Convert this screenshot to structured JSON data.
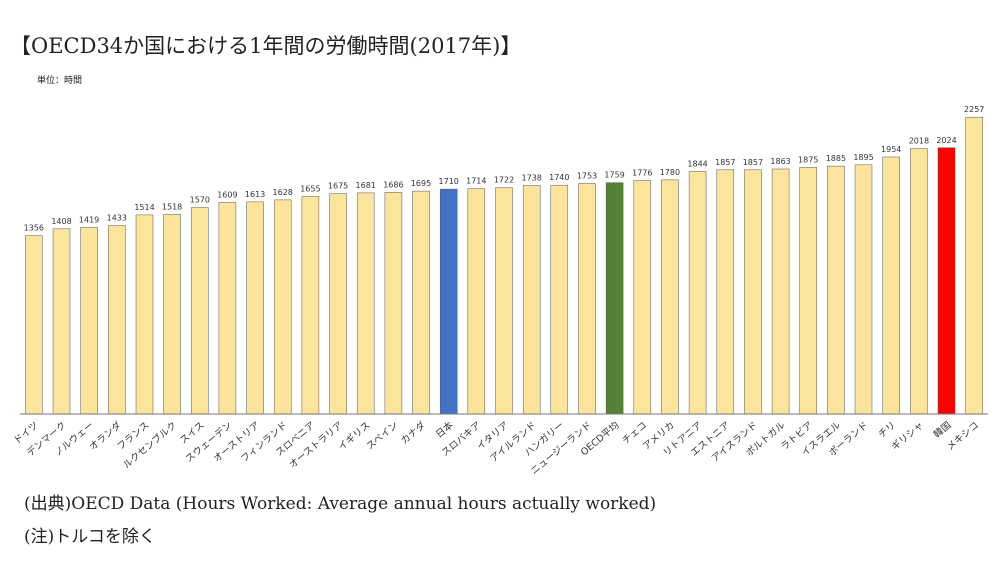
{
  "header": {
    "title": "【OECD34か国における1年間の労働時間(2017年)】",
    "unit": "単位：時間"
  },
  "footer": {
    "source": "(出典)OECD Data (Hours Worked: Average annual hours actually worked)",
    "note": "(注)トルコを除く"
  },
  "colors": {
    "default_bar": "#fde49c",
    "japan": "#4472c4",
    "oecd_average": "#548235",
    "korea": "#ff0000",
    "bar_stroke": "#555555",
    "axis": "#777777"
  },
  "chart_data": {
    "type": "bar",
    "title": "【OECD34か国における1年間の労働時間(2017年)】",
    "xlabel": "",
    "ylabel": "",
    "ylim": [
      0,
      2300
    ],
    "grid": false,
    "legend": "none",
    "categories": [
      "ドイツ",
      "デンマーク",
      "ノルウェー",
      "オランダ",
      "フランス",
      "ルクセンブルク",
      "スイス",
      "スウェーデン",
      "オーストリア",
      "フィンランド",
      "スロベニア",
      "オーストラリア",
      "イギリス",
      "スペイン",
      "カナダ",
      "日本",
      "スロバキア",
      "イタリア",
      "アイルランド",
      "ハンガリー",
      "ニュージーランド",
      "OECD平均",
      "チェコ",
      "アメリカ",
      "リトアニア",
      "エストニア",
      "アイスランド",
      "ポルトガル",
      "ラトビア",
      "イスラエル",
      "ポーランド",
      "チリ",
      "ギリシャ",
      "韓国",
      "メキシコ"
    ],
    "values": [
      1356,
      1408,
      1419,
      1433,
      1514,
      1518,
      1570,
      1609,
      1613,
      1628,
      1655,
      1675,
      1681,
      1686,
      1695,
      1710,
      1714,
      1722,
      1738,
      1740,
      1753,
      1759,
      1776,
      1780,
      1844,
      1857,
      1857,
      1863,
      1875,
      1885,
      1895,
      1954,
      2018,
      2024,
      2257
    ],
    "highlight": {
      "日本": "japan",
      "OECD平均": "oecd_average",
      "韓国": "korea"
    }
  }
}
